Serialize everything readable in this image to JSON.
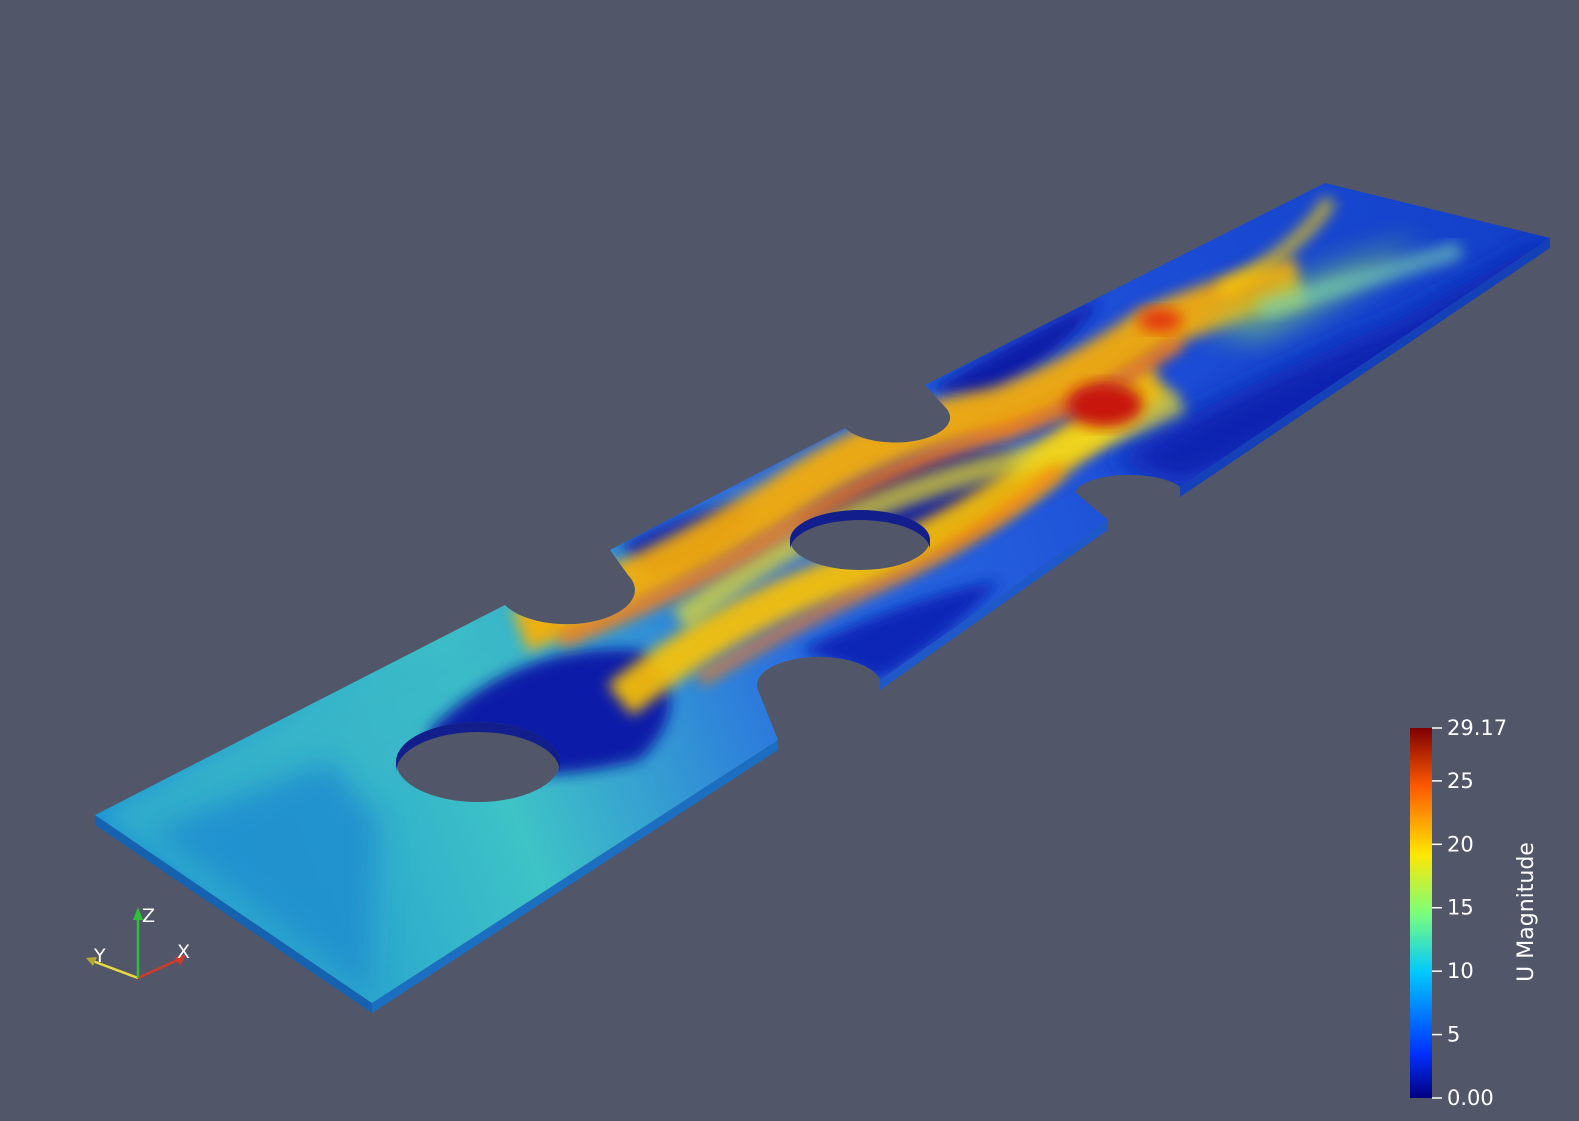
{
  "orientation_axes": {
    "x_label": "X",
    "y_label": "Y",
    "z_label": "Z",
    "x_color": "#d03a2a",
    "y_color": "#e8d840",
    "z_color": "#2fbf3a"
  },
  "colorbar": {
    "title": "U Magnitude",
    "range": [
      0.0,
      29.17
    ],
    "tick_values": [
      0,
      5,
      10,
      15,
      20,
      25,
      29.17
    ],
    "tick_labels": [
      "0.00",
      "5",
      "10",
      "15",
      "20",
      "25",
      "29.17"
    ],
    "colormap": [
      "#00007f",
      "#0030ff",
      "#00c8ff",
      "#7cff7a",
      "#ffe600",
      "#ff5a00",
      "#7f0000"
    ]
  },
  "background_color": "#525669"
}
